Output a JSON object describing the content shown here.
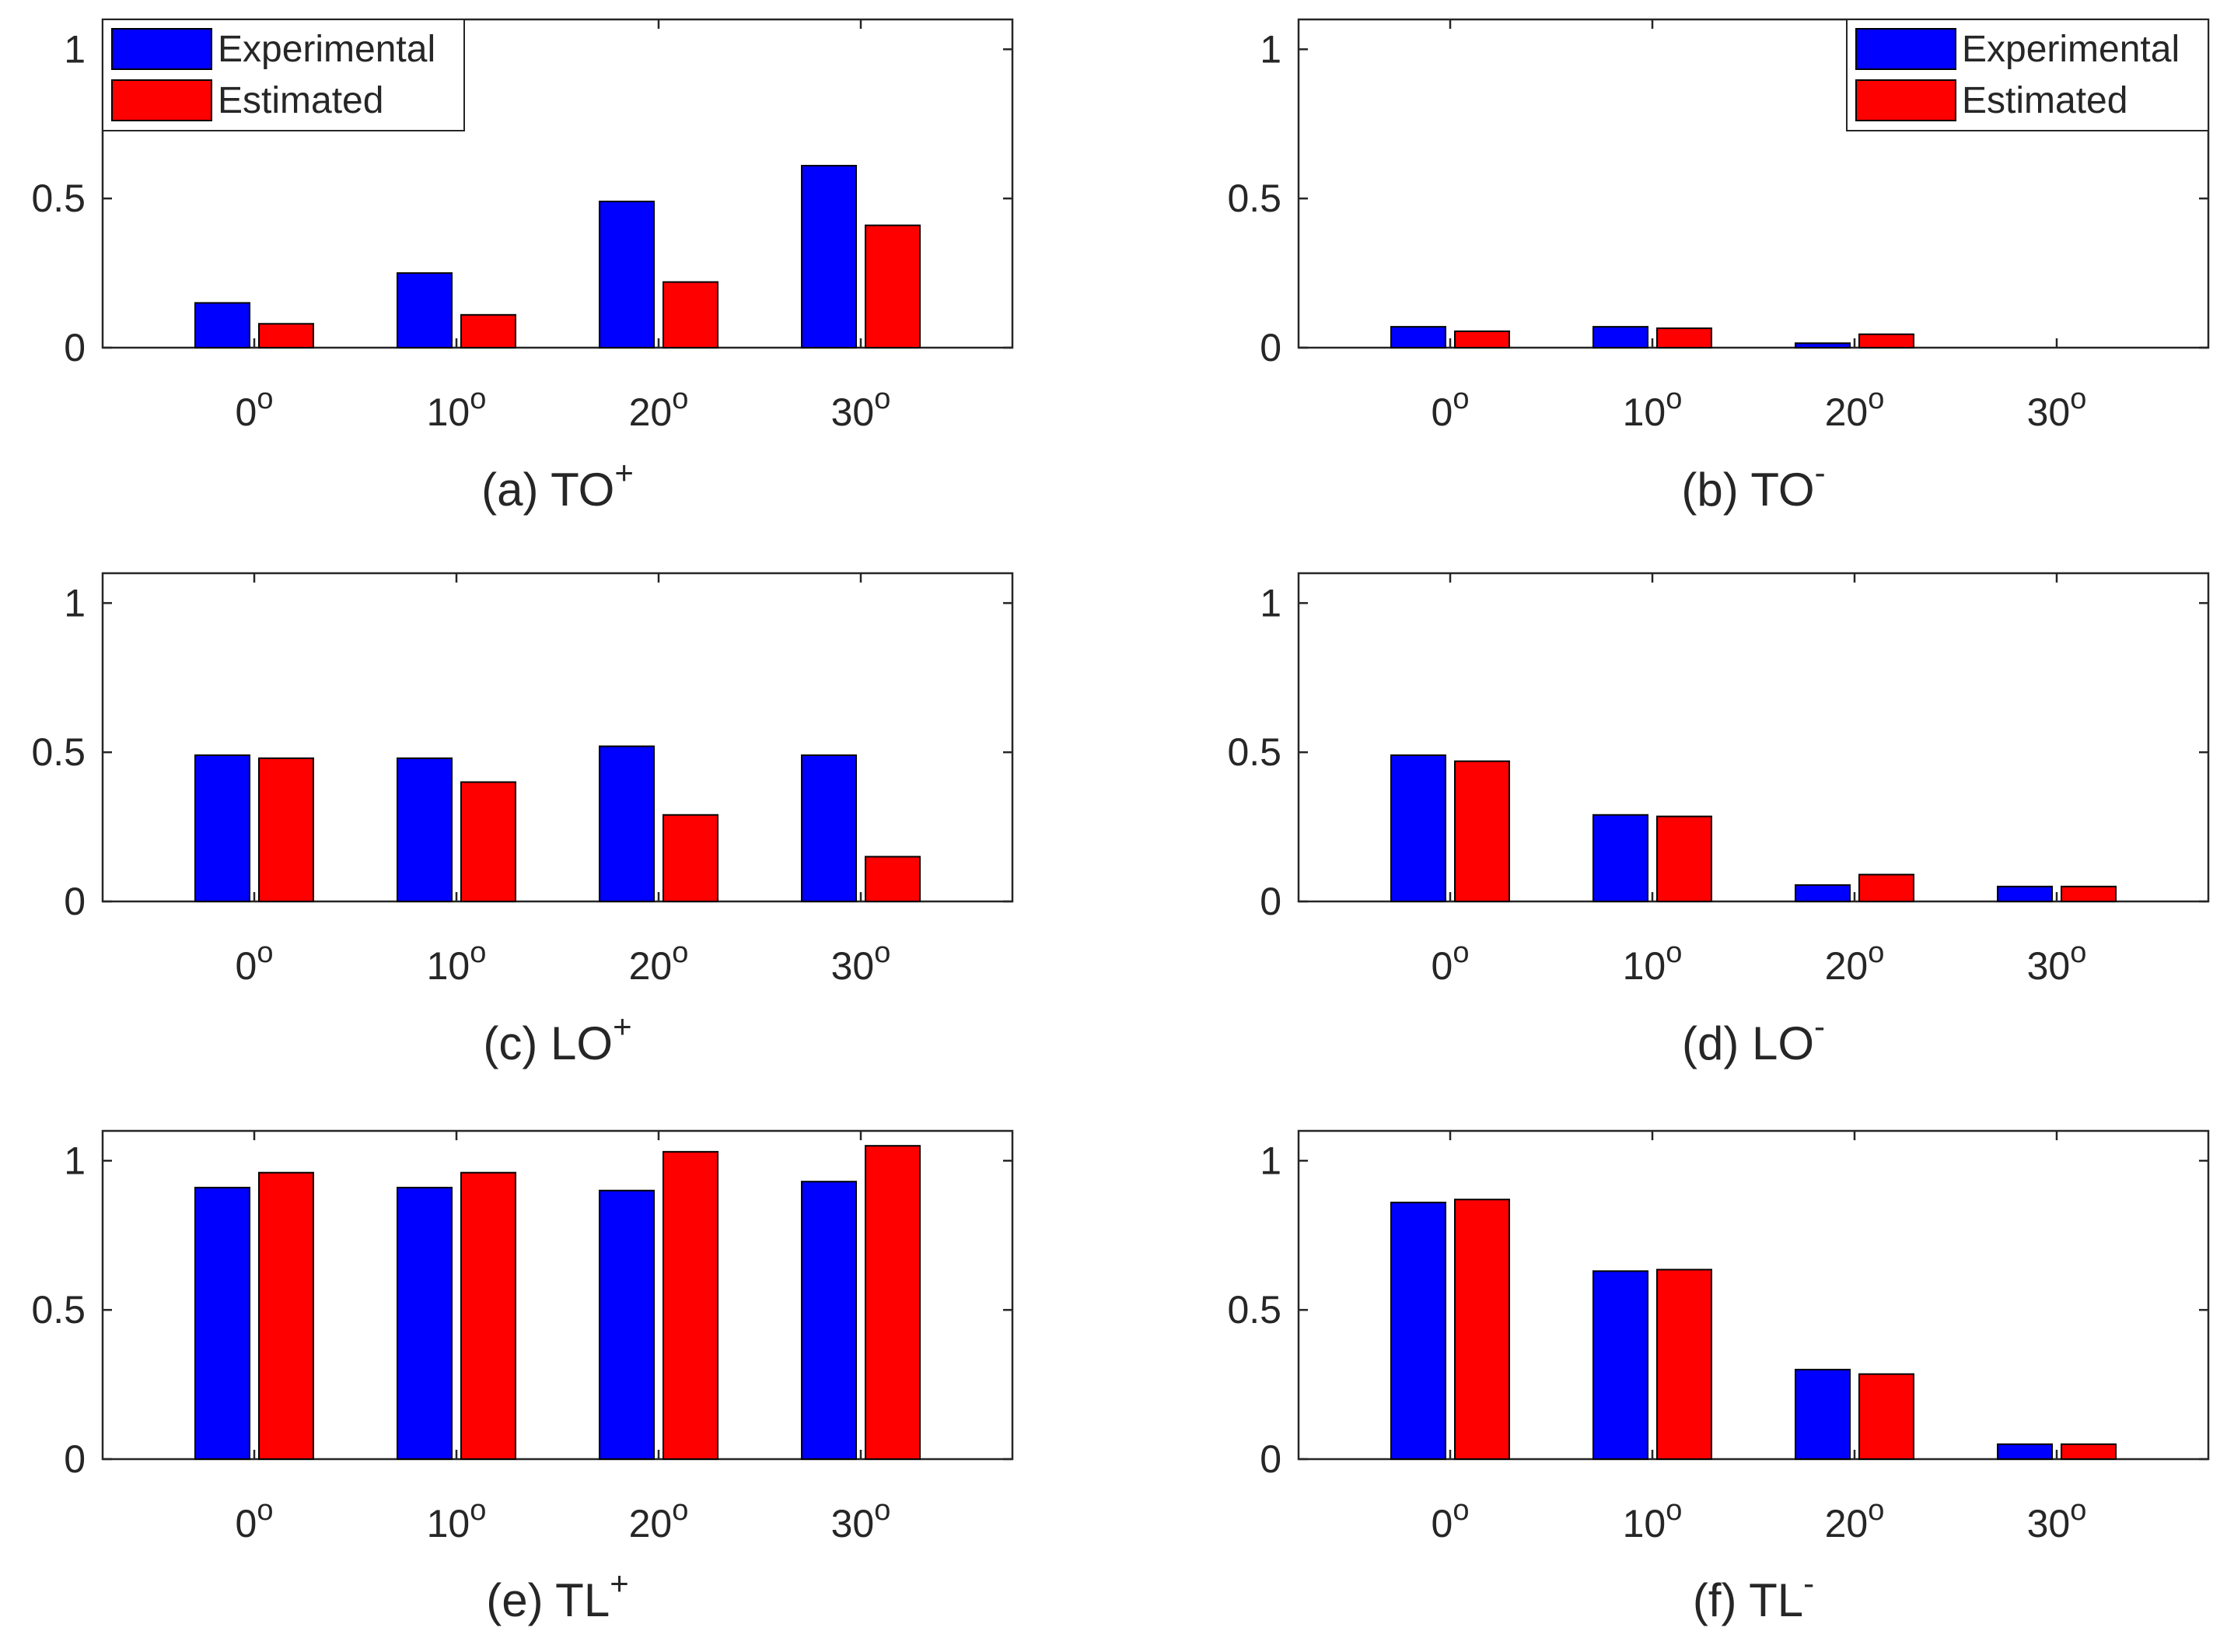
{
  "figure": {
    "series_colors": {
      "Experimental": "#0000ff",
      "Estimated": "#ff0000"
    },
    "categories": [
      "0",
      "10",
      "20",
      "30"
    ],
    "degree_symbol": "o"
  },
  "chart_data": [
    {
      "type": "bar",
      "caption": {
        "prefix": "(a) TO",
        "sup": "+"
      },
      "categories": [
        "0",
        "10",
        "20",
        "30"
      ],
      "ylim": [
        0,
        1.1
      ],
      "yticks": [
        0,
        0.5,
        1
      ],
      "ytick_labels": [
        "0",
        "0.5",
        "1"
      ],
      "legend": {
        "show": true,
        "placement": "top-left"
      },
      "series": [
        {
          "name": "Experimental",
          "color": "#0000ff",
          "values": [
            0.15,
            0.25,
            0.49,
            0.61
          ]
        },
        {
          "name": "Estimated",
          "color": "#ff0000",
          "values": [
            0.08,
            0.11,
            0.22,
            0.41
          ]
        }
      ]
    },
    {
      "type": "bar",
      "caption": {
        "prefix": "(b) TO",
        "sup": "-"
      },
      "categories": [
        "0",
        "10",
        "20",
        "30"
      ],
      "ylim": [
        0,
        1.1
      ],
      "yticks": [
        0,
        0.5,
        1
      ],
      "ytick_labels": [
        "0",
        "0.5",
        "1"
      ],
      "legend": {
        "show": true,
        "placement": "top-right"
      },
      "series": [
        {
          "name": "Experimental",
          "color": "#0000ff",
          "values": [
            0.07,
            0.07,
            0.015,
            0
          ]
        },
        {
          "name": "Estimated",
          "color": "#ff0000",
          "values": [
            0.055,
            0.065,
            0.045,
            0
          ]
        }
      ]
    },
    {
      "type": "bar",
      "caption": {
        "prefix": "(c) LO",
        "sup": "+"
      },
      "categories": [
        "0",
        "10",
        "20",
        "30"
      ],
      "ylim": [
        0,
        1.1
      ],
      "yticks": [
        0,
        0.5,
        1
      ],
      "ytick_labels": [
        "0",
        "0.5",
        "1"
      ],
      "legend": {
        "show": false,
        "placement": ""
      },
      "series": [
        {
          "name": "Experimental",
          "color": "#0000ff",
          "values": [
            0.49,
            0.48,
            0.52,
            0.49
          ]
        },
        {
          "name": "Estimated",
          "color": "#ff0000",
          "values": [
            0.48,
            0.4,
            0.29,
            0.15
          ]
        }
      ]
    },
    {
      "type": "bar",
      "caption": {
        "prefix": "(d) LO",
        "sup": "-"
      },
      "categories": [
        "0",
        "10",
        "20",
        "30"
      ],
      "ylim": [
        0,
        1.1
      ],
      "yticks": [
        0,
        0.5,
        1
      ],
      "ytick_labels": [
        "0",
        "0.5",
        "1"
      ],
      "legend": {
        "show": false,
        "placement": ""
      },
      "series": [
        {
          "name": "Experimental",
          "color": "#0000ff",
          "values": [
            0.49,
            0.29,
            0.055,
            0.05
          ]
        },
        {
          "name": "Estimated",
          "color": "#ff0000",
          "values": [
            0.47,
            0.285,
            0.09,
            0.05
          ]
        }
      ]
    },
    {
      "type": "bar",
      "caption": {
        "prefix": "(e) TL",
        "sup": "+"
      },
      "categories": [
        "0",
        "10",
        "20",
        "30"
      ],
      "ylim": [
        0,
        1.1
      ],
      "yticks": [
        0,
        0.5,
        1
      ],
      "ytick_labels": [
        "0",
        "0.5",
        "1"
      ],
      "legend": {
        "show": false,
        "placement": ""
      },
      "series": [
        {
          "name": "Experimental",
          "color": "#0000ff",
          "values": [
            0.91,
            0.91,
            0.9,
            0.93
          ]
        },
        {
          "name": "Estimated",
          "color": "#ff0000",
          "values": [
            0.96,
            0.96,
            1.03,
            1.05
          ]
        }
      ]
    },
    {
      "type": "bar",
      "caption": {
        "prefix": "(f) TL",
        "sup": "-"
      },
      "categories": [
        "0",
        "10",
        "20",
        "30"
      ],
      "ylim": [
        0,
        1.1
      ],
      "yticks": [
        0,
        0.5,
        1
      ],
      "ytick_labels": [
        "0",
        "0.5",
        "1"
      ],
      "legend": {
        "show": false,
        "placement": ""
      },
      "series": [
        {
          "name": "Experimental",
          "color": "#0000ff",
          "values": [
            0.86,
            0.63,
            0.3,
            0.05
          ]
        },
        {
          "name": "Estimated",
          "color": "#ff0000",
          "values": [
            0.87,
            0.635,
            0.285,
            0.05
          ]
        }
      ]
    }
  ]
}
